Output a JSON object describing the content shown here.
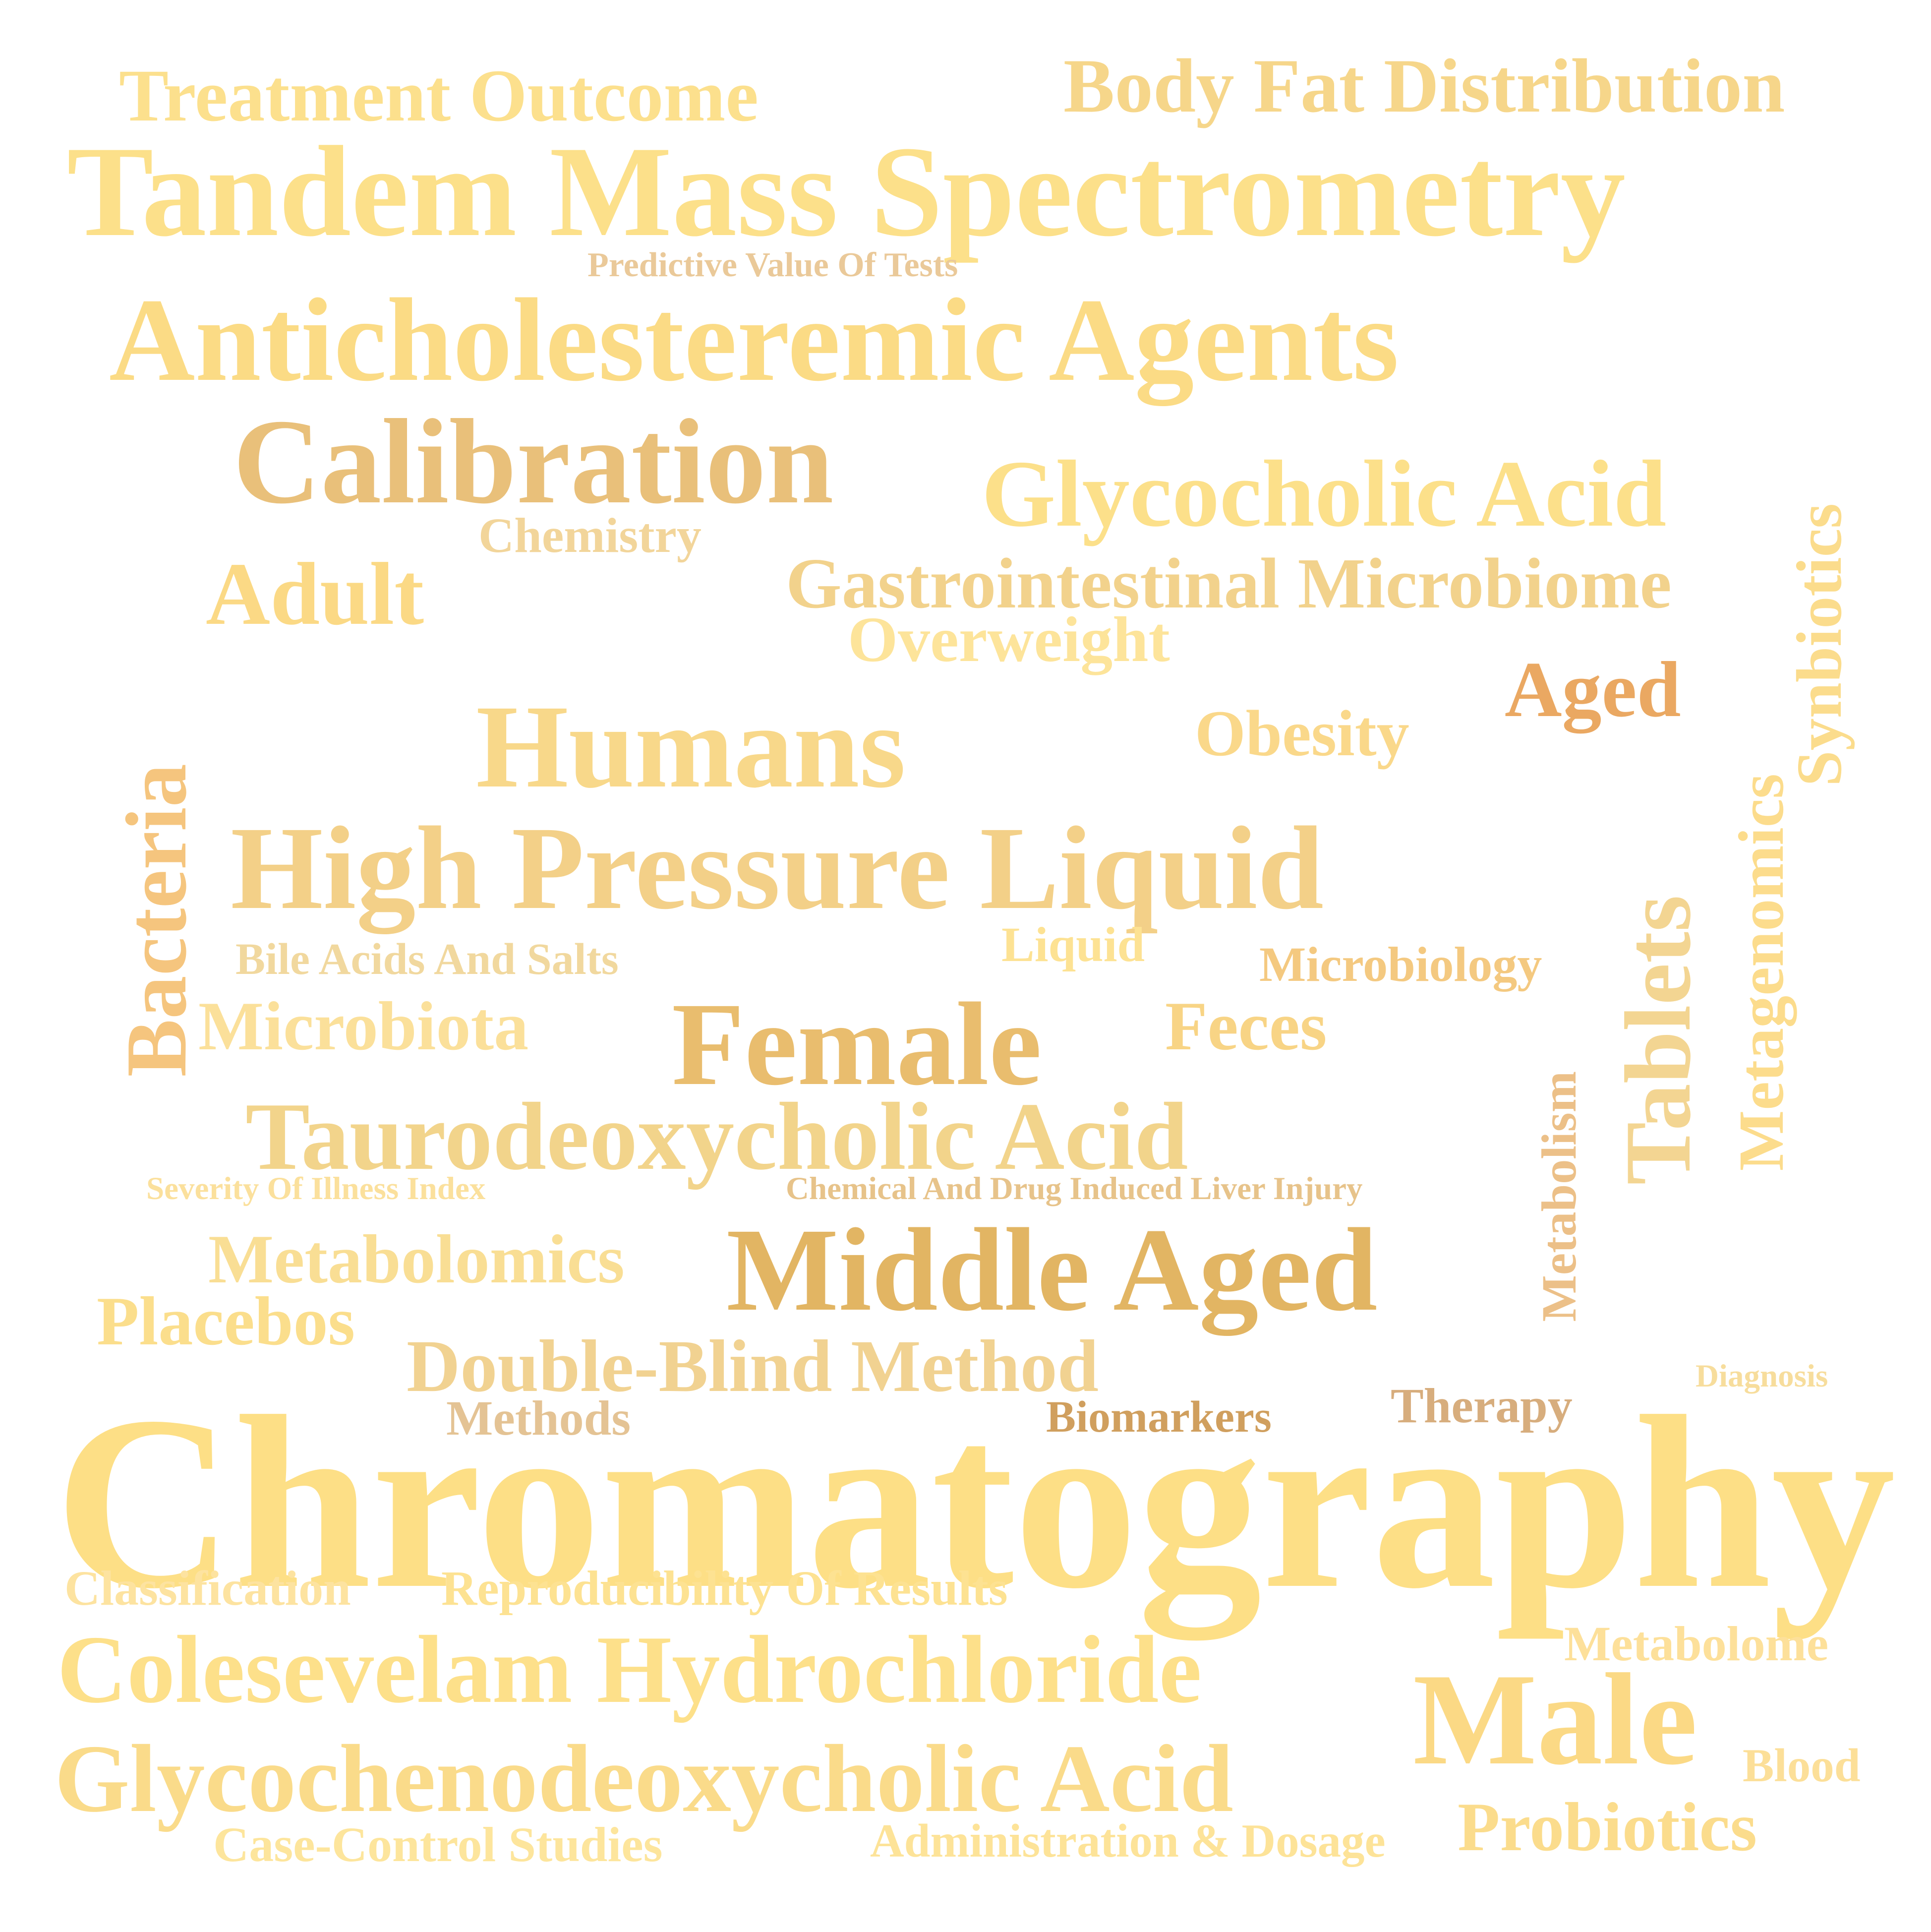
{
  "words": [
    {
      "id": "treatment-outcome",
      "text": "Treatment Outcome",
      "color": "#fce08d"
    },
    {
      "id": "body-fat-distribution",
      "text": "Body Fat Distribution",
      "color": "#f6d68a"
    },
    {
      "id": "tandem-mass-spectrometry",
      "text": "Tandem Mass Spectrometry",
      "color": "#fce08a"
    },
    {
      "id": "predictive-value-of-tests",
      "text": "Predictive Value Of Tests",
      "color": "#eac999"
    },
    {
      "id": "anticholesteremic-agents",
      "text": "Anticholesteremic Agents",
      "color": "#fbdb85"
    },
    {
      "id": "calibration",
      "text": "Calibration",
      "color": "#e9c07a"
    },
    {
      "id": "glycocholic-acid",
      "text": "Glycocholic Acid",
      "color": "#fce08a"
    },
    {
      "id": "chemistry",
      "text": "Chemistry",
      "color": "#f2d59a"
    },
    {
      "id": "adult",
      "text": "Adult",
      "color": "#fbd985"
    },
    {
      "id": "gastrointestinal-microbiome",
      "text": "Gastrointestinal Microbiome",
      "color": "#f2d28c"
    },
    {
      "id": "overweight",
      "text": "Overweight",
      "color": "#fde49a"
    },
    {
      "id": "synbiotics",
      "text": "Synbiotics",
      "color": "#fbdc8c"
    },
    {
      "id": "aged",
      "text": "Aged",
      "color": "#eaa862"
    },
    {
      "id": "humans",
      "text": "Humans",
      "color": "#f8d88a"
    },
    {
      "id": "obesity",
      "text": "Obesity",
      "color": "#fad88a"
    },
    {
      "id": "bacteria",
      "text": "Bacteria",
      "color": "#f5c57e"
    },
    {
      "id": "high-pressure-liquid",
      "text": "High Pressure Liquid",
      "color": "#f3d088"
    },
    {
      "id": "metagenomics",
      "text": "Metagenomics",
      "color": "#fcdc8c"
    },
    {
      "id": "liquid",
      "text": "Liquid",
      "color": "#fde293"
    },
    {
      "id": "bile-acids-and-salts",
      "text": "Bile Acids And Salts",
      "color": "#f1d89e"
    },
    {
      "id": "microbiology",
      "text": "Microbiology",
      "color": "#f4c980"
    },
    {
      "id": "tablets",
      "text": "Tablets",
      "color": "#f3d592"
    },
    {
      "id": "microbiota",
      "text": "Microbiota",
      "color": "#fbe09a"
    },
    {
      "id": "female",
      "text": "Female",
      "color": "#e9bd6e"
    },
    {
      "id": "feces",
      "text": "Feces",
      "color": "#f8d485"
    },
    {
      "id": "metabolism",
      "text": "Metabolism",
      "color": "#ecc088"
    },
    {
      "id": "taurodeoxycholic-acid",
      "text": "Taurodeoxycholic Acid",
      "color": "#f2d48b"
    },
    {
      "id": "severity-of-illness-index",
      "text": "Severity Of Illness Index",
      "color": "#fbe09c"
    },
    {
      "id": "chemical-and-drug-induced-liver-injury",
      "text": "Chemical And Drug Induced Liver Injury",
      "color": "#e7c38a"
    },
    {
      "id": "metabolomics",
      "text": "Metabolomics",
      "color": "#f9de94"
    },
    {
      "id": "middle-aged",
      "text": "Middle Aged",
      "color": "#e2b563"
    },
    {
      "id": "placebos",
      "text": "Placebos",
      "color": "#fbde8c"
    },
    {
      "id": "double-blind-method",
      "text": "Double-Blind Method",
      "color": "#f1d291"
    },
    {
      "id": "diagnosis",
      "text": "Diagnosis",
      "color": "#f7dd9c"
    },
    {
      "id": "methods",
      "text": "Methods",
      "color": "#e4c394"
    },
    {
      "id": "biomarkers",
      "text": "Biomarkers",
      "color": "#d09f5e"
    },
    {
      "id": "therapy",
      "text": "Therapy",
      "color": "#d7ad7d"
    },
    {
      "id": "chromatography",
      "text": "Chromatography",
      "color": "#fddf86"
    },
    {
      "id": "classification",
      "text": "Classification",
      "color": "#fde3a0"
    },
    {
      "id": "reproducibility-of-results",
      "text": "Reproducibility Of Results",
      "color": "#fde292"
    },
    {
      "id": "metabolome",
      "text": "Metabolome",
      "color": "#fde09a"
    },
    {
      "id": "colesevelam-hydrochloride",
      "text": "Colesevelam Hydrochloride",
      "color": "#fde08a"
    },
    {
      "id": "male",
      "text": "Male",
      "color": "#fbd985"
    },
    {
      "id": "glycochenodeoxycholic-acid",
      "text": "Glycochenodeoxycholic Acid",
      "color": "#fadb8a"
    },
    {
      "id": "blood",
      "text": "Blood",
      "color": "#fcdf98"
    },
    {
      "id": "probiotics",
      "text": "Probiotics",
      "color": "#fbdc8c"
    },
    {
      "id": "case-control-studies",
      "text": "Case-Control Studies",
      "color": "#fde59c"
    },
    {
      "id": "administration-and-dosage",
      "text": "Administration & Dosage",
      "color": "#fde398"
    }
  ]
}
